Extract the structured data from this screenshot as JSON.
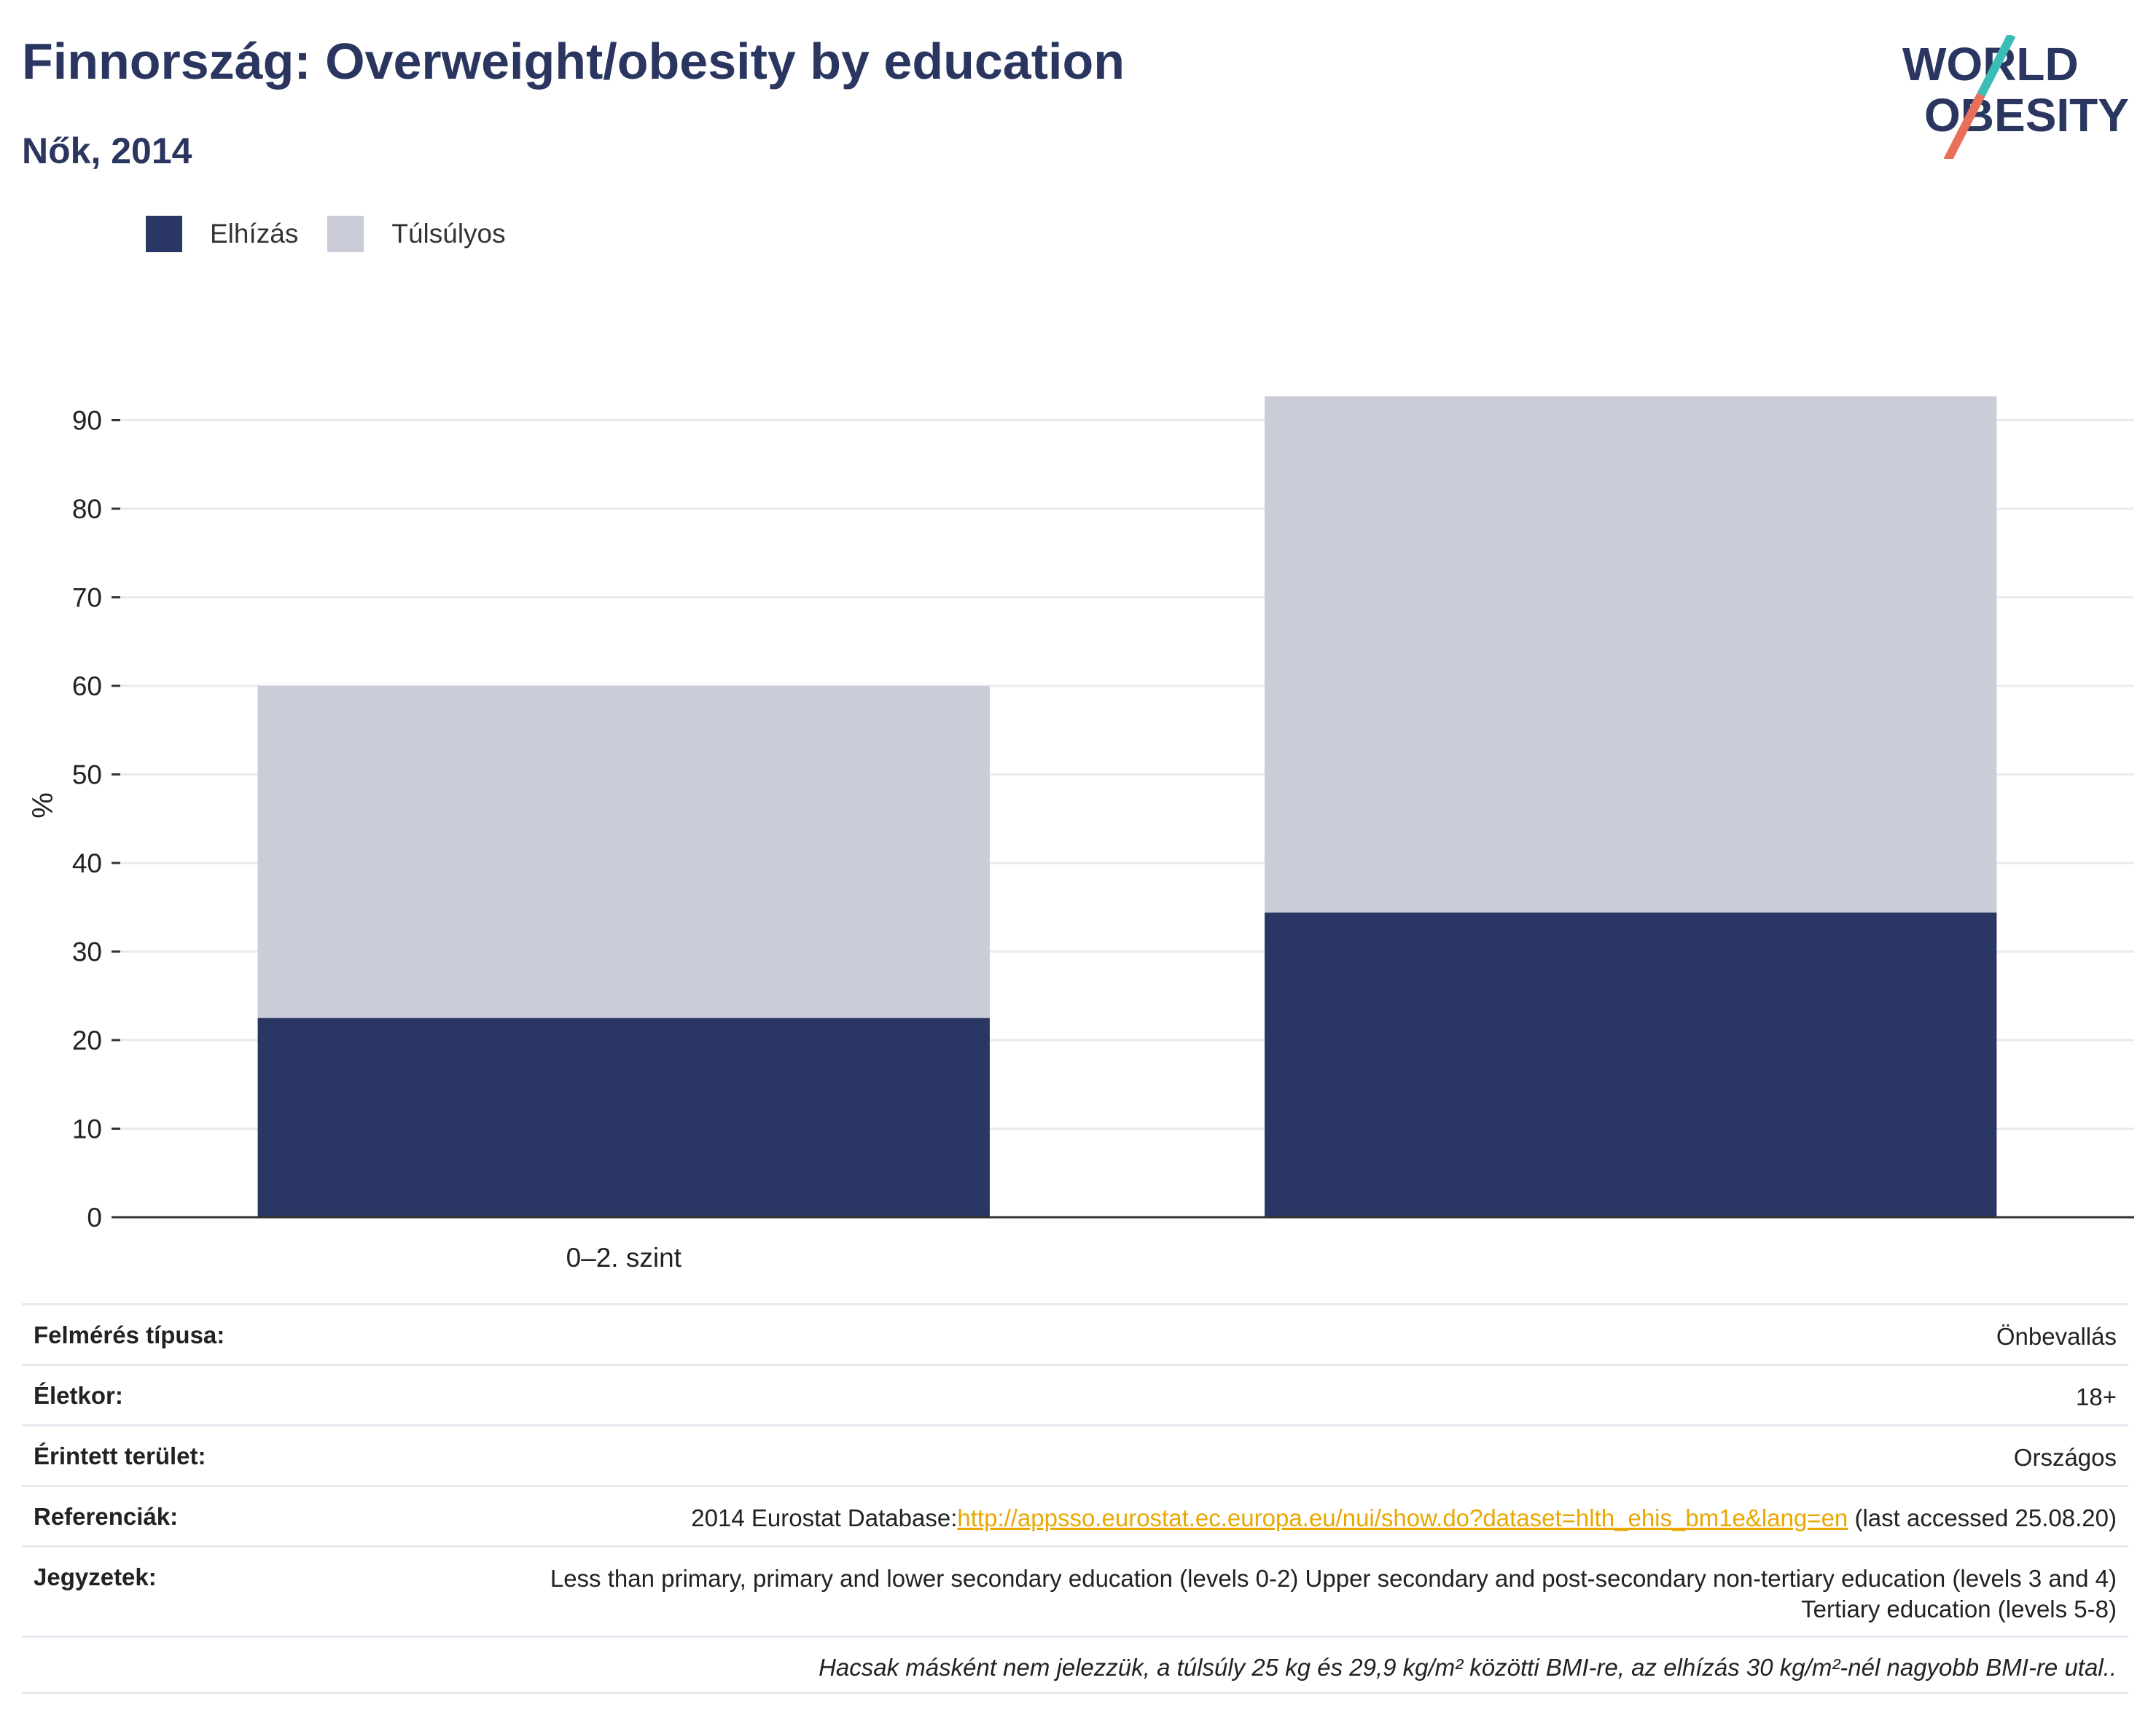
{
  "header": {
    "title": "Finnország: Overweight/obesity by education",
    "subtitle": "Nők, 2014"
  },
  "logo": {
    "line1": "WORLD",
    "line2": "OBESITY"
  },
  "legend": [
    {
      "label": "Elhízás",
      "color": "#2a3663"
    },
    {
      "label": "Túlsúlyos",
      "color": "#cacdd8"
    }
  ],
  "chart_data": {
    "type": "bar",
    "stacked": true,
    "categories": [
      "0–2. szint",
      ""
    ],
    "series": [
      {
        "name": "Elhízás",
        "color": "#2a3663",
        "values": [
          22.5,
          34.4
        ]
      },
      {
        "name": "Túlsúlyos",
        "color": "#cacdd8",
        "values": [
          37.5,
          58.3
        ]
      }
    ],
    "ylabel": "%",
    "ylim": [
      0,
      93
    ],
    "yticks": [
      0,
      10,
      20,
      30,
      40,
      50,
      60,
      70,
      80,
      90
    ],
    "grid": true
  },
  "meta": {
    "survey_type": {
      "label": "Felmérés típusa:",
      "value": "Önbevallás"
    },
    "age": {
      "label": "Életkor:",
      "value": "18+"
    },
    "area": {
      "label": "Érintett terület:",
      "value": "Országos"
    },
    "references": {
      "label": "Referenciák:",
      "prefix": "2014 Eurostat Database:",
      "link": "http://appsso.eurostat.ec.europa.eu/nui/show.do?dataset=hlth_ehis_bm1e&lang=en",
      "suffix": " (last accessed 25.08.20)"
    },
    "notes": {
      "label": "Jegyzetek:",
      "value": "Less than primary, primary and lower secondary education (levels 0-2) Upper secondary and post-secondary non-tertiary education (levels 3 and 4) Tertiary education (levels 5-8)"
    },
    "footnote": "Hacsak másként nem jelezzük, a túlsúly 25 kg és 29,9 kg/m² közötti BMI-re, az elhízás 30 kg/m²-nél nagyobb BMI-re utal.."
  }
}
